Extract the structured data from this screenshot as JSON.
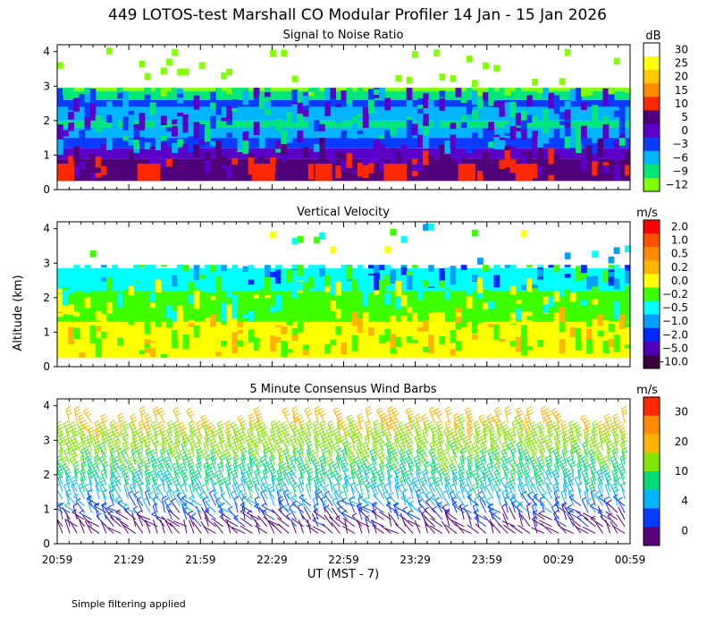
{
  "figure_title": "449 LOTOS-test Marshall CO Modular Profiler 14 Jan - 15 Jan 2026",
  "y_axis_label": "Altitude (km)",
  "x_axis_label": "UT  (MST - 7)",
  "footnote": "Simple filtering applied",
  "colors": {
    "background": "#ffffff",
    "axis": "#000000"
  },
  "chart_data": [
    {
      "type": "heatmap",
      "title": "Signal to Noise Ratio",
      "unit": "dB",
      "xlabel": "UT  (MST - 7)",
      "ylabel": "Altitude (km)",
      "x_ticks": [
        "20:59",
        "21:29",
        "21:59",
        "22:29",
        "22:59",
        "23:29",
        "23:59",
        "00:29",
        "00:59"
      ],
      "y_ticks": [
        "0",
        "1",
        "2",
        "3",
        "4"
      ],
      "ylim": [
        0,
        4.2
      ],
      "colorbar_labels": [
        "30",
        "25",
        "20",
        "15",
        "10",
        "5",
        "0",
        "−3",
        "−6",
        "−9",
        "−12"
      ],
      "colorbar_colors": [
        "#ffffff",
        "#ffff00",
        "#ffc800",
        "#ff8c00",
        "#ff2800",
        "#500078",
        "#5a00c8",
        "#0a3cff",
        "#00b4ff",
        "#00e678",
        "#82ff00"
      ],
      "bands_km": [
        {
          "from": 0.25,
          "to": 0.9,
          "color": "#500078",
          "value": "5"
        },
        {
          "from": 0.9,
          "to": 1.2,
          "color": "#5a00c8",
          "value": "0"
        },
        {
          "from": 1.2,
          "to": 1.5,
          "color": "#0a3cff",
          "value": "-3"
        },
        {
          "from": 1.5,
          "to": 1.8,
          "color": "#00b4ff",
          "value": "-6"
        },
        {
          "from": 1.8,
          "to": 2.0,
          "color": "#00e678",
          "value": "-9"
        },
        {
          "from": 2.0,
          "to": 2.4,
          "color": "#00b4ff",
          "value": "-6"
        },
        {
          "from": 2.4,
          "to": 2.6,
          "color": "#0a3cff",
          "value": "-3"
        },
        {
          "from": 2.6,
          "to": 2.85,
          "color": "#00e678",
          "value": "-9"
        },
        {
          "from": 2.85,
          "to": 2.95,
          "color": "#82ff00",
          "value": "-12"
        }
      ]
    },
    {
      "type": "heatmap",
      "title": "Vertical Velocity",
      "unit": "m/s",
      "xlabel": "UT  (MST - 7)",
      "ylabel": "Altitude (km)",
      "x_ticks": [
        "20:59",
        "21:29",
        "21:59",
        "22:29",
        "22:59",
        "23:29",
        "23:59",
        "00:29",
        "00:59"
      ],
      "y_ticks": [
        "0",
        "1",
        "2",
        "3",
        "4"
      ],
      "ylim": [
        0,
        4.2
      ],
      "colorbar_labels": [
        "2.0",
        "1.0",
        "0.5",
        "0.2",
        "0.0",
        "−0.2",
        "−0.5",
        "−1.0",
        "−2.0",
        "−5.0",
        "−10.0"
      ],
      "colorbar_colors": [
        "#ff0000",
        "#ff5000",
        "#ff8c00",
        "#ffb400",
        "#ffff00",
        "#3cff00",
        "#00ffff",
        "#00a0ff",
        "#0028ff",
        "#5000b4",
        "#3c003c"
      ],
      "bands_km": [
        {
          "from": 0.25,
          "to": 1.3,
          "color": "#ffff00",
          "value": "0.0"
        },
        {
          "from": 1.3,
          "to": 2.2,
          "color": "#3cff00",
          "value": "-0.2"
        },
        {
          "from": 2.2,
          "to": 2.85,
          "color": "#00ffff",
          "value": "-0.5"
        }
      ]
    },
    {
      "type": "wind_barbs",
      "title": "5 Minute Consensus Wind Barbs",
      "unit": "m/s",
      "xlabel": "UT  (MST - 7)",
      "ylabel": "Altitude (km)",
      "x_ticks": [
        "20:59",
        "21:29",
        "21:59",
        "22:29",
        "22:59",
        "23:29",
        "23:59",
        "00:29",
        "00:59"
      ],
      "y_ticks": [
        "0",
        "1",
        "2",
        "3",
        "4"
      ],
      "ylim": [
        0,
        4.2
      ],
      "colorbar_labels": [
        "30",
        "20",
        "10",
        "4",
        "0"
      ],
      "colorbar_colors": [
        "#ff2800",
        "#ff8c00",
        "#ffb400",
        "#82e600",
        "#00dc78",
        "#00b4ff",
        "#0a3cff",
        "#5a0078"
      ],
      "speed_by_altitude_km": [
        {
          "alt": 0.5,
          "speed_ms": 2
        },
        {
          "alt": 1.0,
          "speed_ms": 5
        },
        {
          "alt": 1.5,
          "speed_ms": 8
        },
        {
          "alt": 2.0,
          "speed_ms": 10
        },
        {
          "alt": 2.5,
          "speed_ms": 12
        },
        {
          "alt": 3.0,
          "speed_ms": 14
        },
        {
          "alt": 3.5,
          "speed_ms": 17
        },
        {
          "alt": 4.0,
          "speed_ms": 20
        }
      ],
      "direction": "westerly"
    }
  ]
}
